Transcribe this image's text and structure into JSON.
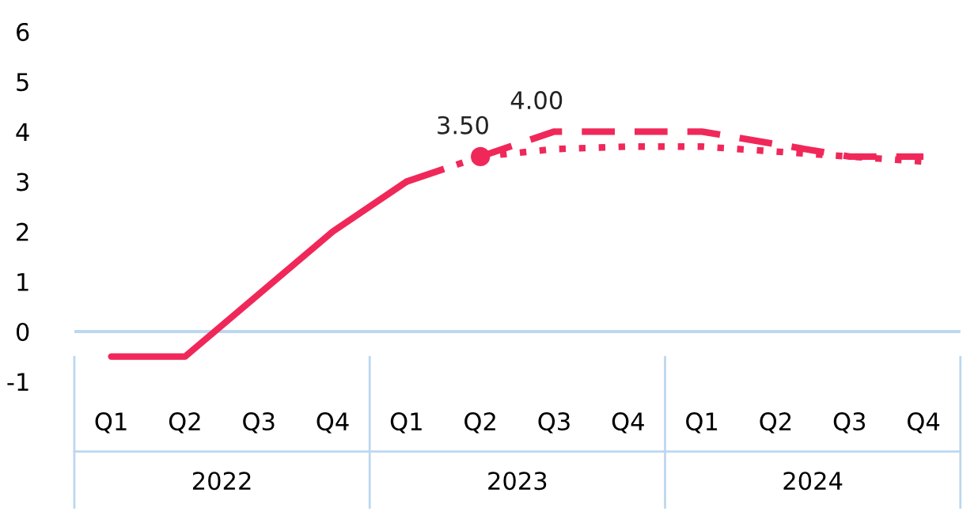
{
  "chart_data": {
    "type": "line",
    "categories": [
      "Q1",
      "Q2",
      "Q3",
      "Q4",
      "Q1",
      "Q2",
      "Q3",
      "Q4",
      "Q1",
      "Q2",
      "Q3",
      "Q4"
    ],
    "series": [
      {
        "color": "#f0285a",
        "line_style": "solid",
        "values": [
          -0.5,
          -0.5,
          0.75,
          2.0,
          3.0,
          null,
          null,
          null,
          null,
          null,
          null,
          null
        ]
      },
      {
        "color": "#f0285a",
        "line_style": "dashdot",
        "values": [
          null,
          null,
          null,
          null,
          3.0,
          3.5,
          null,
          null,
          null,
          null,
          null,
          null
        ]
      },
      {
        "color": "#f0285a",
        "line_style": "dashed",
        "values": [
          null,
          null,
          null,
          null,
          null,
          3.5,
          4.0,
          4.0,
          4.0,
          3.75,
          3.5,
          3.5
        ],
        "value_labels": [
          null,
          null,
          null,
          null,
          null,
          null,
          "4.00",
          null,
          null,
          null,
          null,
          null
        ]
      },
      {
        "color": "#f0285a",
        "line_style": "dotted",
        "values": [
          null,
          null,
          null,
          null,
          null,
          3.5,
          3.65,
          3.7,
          3.7,
          3.6,
          3.5,
          3.4
        ]
      },
      {
        "type": "scatter",
        "marker": "circle",
        "color": "#f0285a",
        "values": [
          null,
          null,
          null,
          null,
          null,
          3.5,
          null,
          null,
          null,
          null,
          null,
          null
        ],
        "value_labels": [
          null,
          null,
          null,
          null,
          null,
          "3.50",
          null,
          null,
          null,
          null,
          null,
          null
        ]
      }
    ],
    "ylim": [
      -1,
      6
    ],
    "yticks": [
      -1,
      0,
      1,
      2,
      3,
      4,
      5,
      6
    ],
    "ref_lines": [
      {
        "axis": "y",
        "value": 0,
        "color": "#bdd7ee"
      }
    ],
    "annotations": [
      "2022",
      "2023",
      "2024"
    ],
    "grid": false,
    "legend": false
  }
}
